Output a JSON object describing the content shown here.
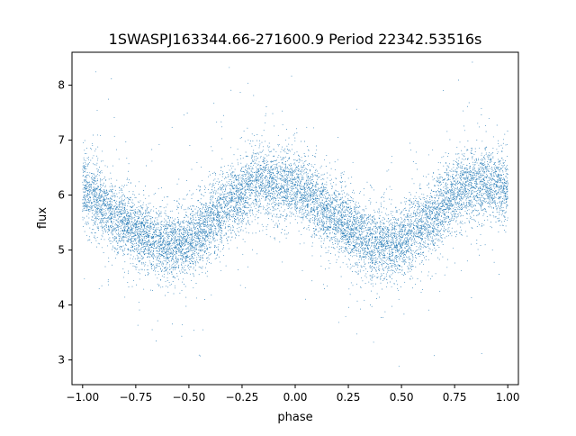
{
  "chart_data": {
    "type": "scatter",
    "title": "1SWASPJ163344.66-271600.9 Period 22342.53516s",
    "xlabel": "phase",
    "ylabel": "flux",
    "xlim": [
      -1.05,
      1.05
    ],
    "ylim": [
      2.55,
      8.6
    ],
    "x_ticks": [
      -1.0,
      -0.75,
      -0.5,
      -0.25,
      0.0,
      0.25,
      0.5,
      0.75,
      1.0
    ],
    "x_tick_labels": [
      "−1.00",
      "−0.75",
      "−0.50",
      "−0.25",
      "0.00",
      "0.25",
      "0.50",
      "0.75",
      "1.00"
    ],
    "y_ticks": [
      3,
      4,
      5,
      6,
      7,
      8
    ],
    "y_tick_labels": [
      "3",
      "4",
      "5",
      "6",
      "7",
      "8"
    ],
    "grid": false,
    "legend": "none",
    "marker_color": "#1f77b4",
    "series": [
      {
        "x": [
          -1.0,
          -0.95,
          -0.9,
          -0.85,
          -0.8,
          -0.75,
          -0.7,
          -0.65,
          -0.6,
          -0.55,
          -0.5,
          -0.45,
          -0.4,
          -0.35,
          -0.3,
          -0.25,
          -0.2,
          -0.15,
          -0.1,
          -0.05,
          0.0,
          0.05,
          0.1,
          0.15,
          0.2,
          0.25,
          0.3,
          0.35,
          0.4,
          0.45,
          0.5,
          0.55,
          0.6,
          0.65,
          0.7,
          0.75,
          0.8,
          0.85,
          0.9,
          0.95,
          1.0
        ],
        "y": [
          6.1,
          6.0,
          5.8,
          5.6,
          5.45,
          5.35,
          5.25,
          5.15,
          5.1,
          5.1,
          5.15,
          5.3,
          5.5,
          5.7,
          5.9,
          6.05,
          6.2,
          6.25,
          6.2,
          6.15,
          6.15,
          6.05,
          5.9,
          5.7,
          5.55,
          5.4,
          5.25,
          5.15,
          5.1,
          5.1,
          5.15,
          5.3,
          5.45,
          5.65,
          5.85,
          6.0,
          6.15,
          6.2,
          6.2,
          6.15,
          6.1
        ],
        "scatter_sd": 0.32,
        "point_count": 12000
      }
    ]
  }
}
